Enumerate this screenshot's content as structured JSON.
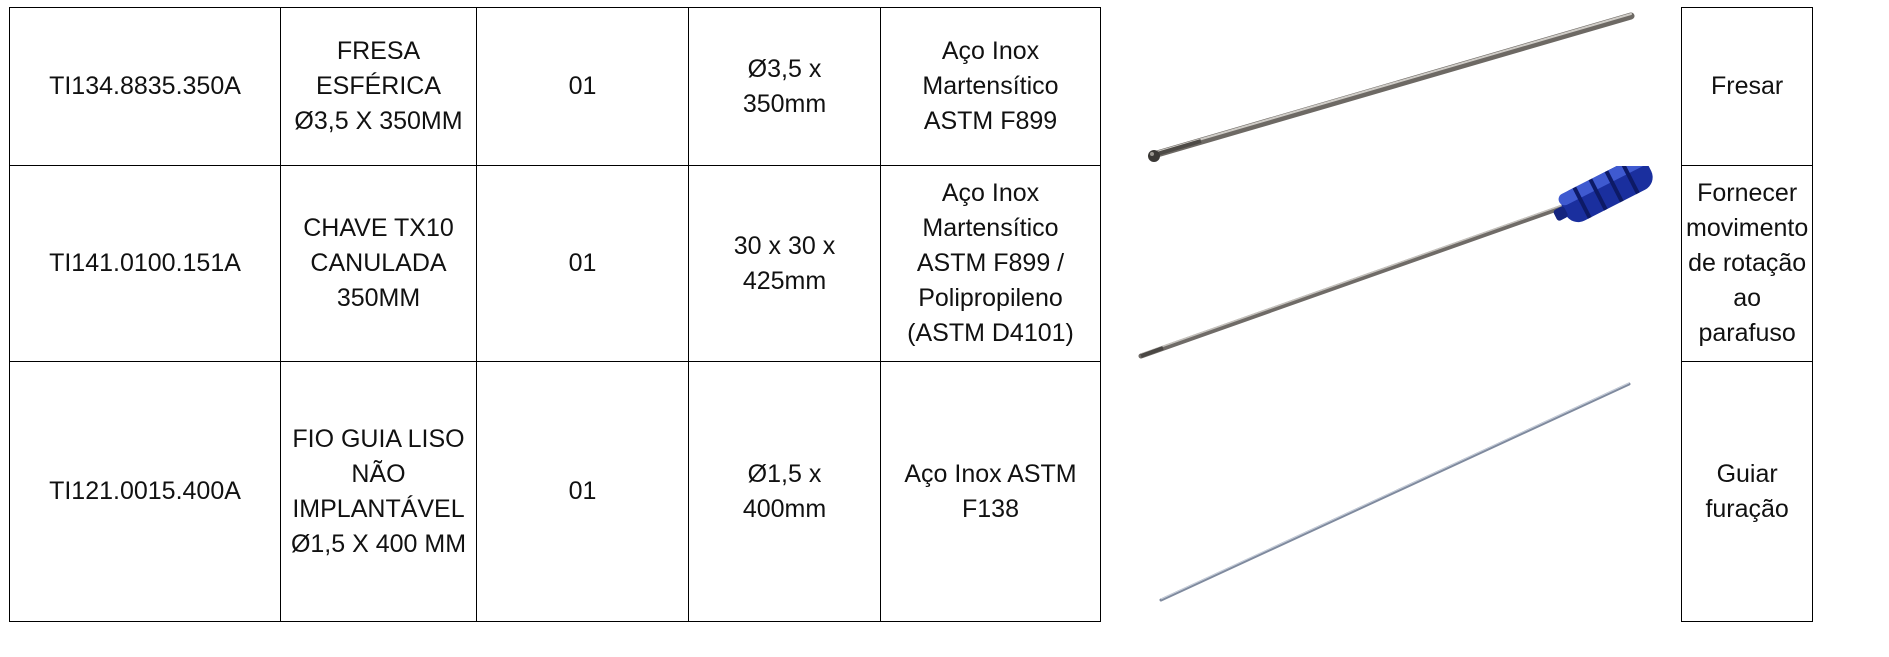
{
  "rows": [
    {
      "code": "TI134.8835.350A",
      "description": [
        "FRESA ESFÉRICA",
        "Ø3,5 X 350MM"
      ],
      "quantity": "01",
      "dimensions": [
        "Ø3,5 x",
        "350mm"
      ],
      "material": [
        "Aço Inox",
        "Martensítico",
        "ASTM F899"
      ],
      "image": "spherical-burr-image",
      "function": [
        "Fresar"
      ]
    },
    {
      "code": "TI141.0100.151A",
      "description": [
        "CHAVE TX10",
        "CANULADA",
        "350MM"
      ],
      "quantity": "01",
      "dimensions": [
        "30 x 30 x",
        "425mm"
      ],
      "material": [
        "Aço Inox",
        "Martensítico",
        "ASTM F899 /",
        "Polipropileno",
        "(ASTM D4101)"
      ],
      "image": "cannulated-screwdriver-image",
      "function": [
        "Fornecer",
        "movimento",
        "de rotação",
        "ao",
        "parafuso"
      ]
    },
    {
      "code": "TI121.0015.400A",
      "description": [
        "FIO GUIA LISO",
        "NÃO",
        "IMPLANTÁVEL",
        "Ø1,5 X 400 MM"
      ],
      "quantity": "01",
      "dimensions": [
        "Ø1,5 x",
        "400mm"
      ],
      "material": [
        "Aço Inox ASTM",
        "F138"
      ],
      "image": "guide-wire-image",
      "function": [
        "Guiar",
        "furação"
      ]
    }
  ]
}
